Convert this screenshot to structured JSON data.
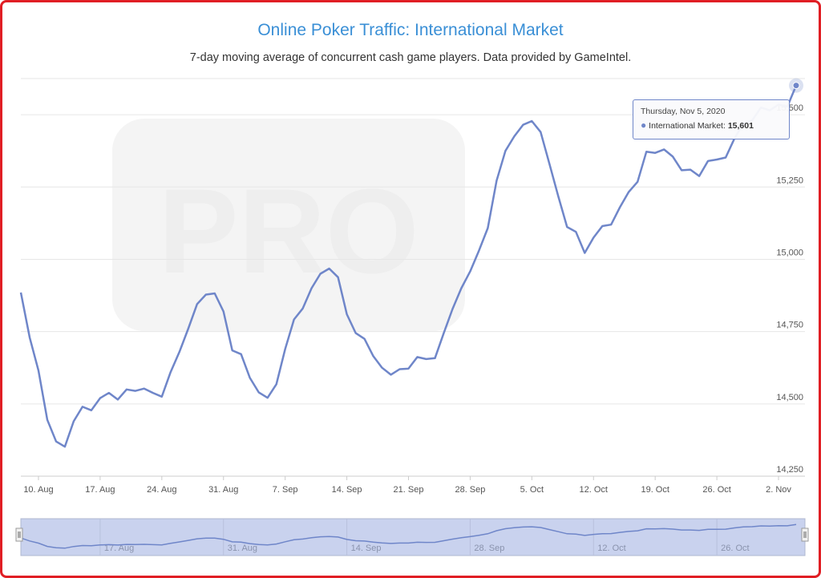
{
  "header": {
    "title": "Online Poker Traffic: International Market",
    "subtitle": "7-day moving average of concurrent cash game players. Data provided by GameIntel."
  },
  "watermark": {
    "text": "PRO"
  },
  "tooltip": {
    "date": "Thursday, Nov 5, 2020",
    "series_label": "International Market:",
    "value": "15,601"
  },
  "colors": {
    "line": "#6f86c9",
    "title": "#3a8fd6",
    "frame": "#e01e24",
    "navigator_fill": "#c9d2ee"
  },
  "chart_data": {
    "type": "line",
    "title": "Online Poker Traffic: International Market",
    "subtitle": "7-day moving average of concurrent cash game players. Data provided by GameIntel.",
    "x_start": "2020-08-08",
    "x_end": "2020-11-05",
    "xlabel": "",
    "ylabel": "",
    "ylim": [
      14250,
      15625
    ],
    "yticks": [
      14250,
      14500,
      14750,
      15000,
      15250,
      15500
    ],
    "ytick_labels": [
      "14,250",
      "14,500",
      "14,750",
      "15,000",
      "15,250",
      "15,500"
    ],
    "xticks": [
      {
        "date": "2020-08-10",
        "label": "10. Aug"
      },
      {
        "date": "2020-08-17",
        "label": "17. Aug"
      },
      {
        "date": "2020-08-24",
        "label": "24. Aug"
      },
      {
        "date": "2020-08-31",
        "label": "31. Aug"
      },
      {
        "date": "2020-09-07",
        "label": "7. Sep"
      },
      {
        "date": "2020-09-14",
        "label": "14. Sep"
      },
      {
        "date": "2020-09-21",
        "label": "21. Sep"
      },
      {
        "date": "2020-09-28",
        "label": "28. Sep"
      },
      {
        "date": "2020-10-05",
        "label": "5. Oct"
      },
      {
        "date": "2020-10-12",
        "label": "12. Oct"
      },
      {
        "date": "2020-10-19",
        "label": "19. Oct"
      },
      {
        "date": "2020-10-26",
        "label": "26. Oct"
      },
      {
        "date": "2020-11-02",
        "label": "2. Nov"
      }
    ],
    "navigator_labels": [
      {
        "date": "2020-08-17",
        "label": "17. Aug"
      },
      {
        "date": "2020-08-31",
        "label": "31. Aug"
      },
      {
        "date": "2020-09-14",
        "label": "14. Sep"
      },
      {
        "date": "2020-09-28",
        "label": "28. Sep"
      },
      {
        "date": "2020-10-12",
        "label": "12. Oct"
      },
      {
        "date": "2020-10-26",
        "label": "26. Oct"
      }
    ],
    "grid": true,
    "legend": "none",
    "series": [
      {
        "values": [
          14885,
          14730,
          14615,
          14445,
          14370,
          14352,
          14440,
          14490,
          14478,
          14520,
          14538,
          14515,
          14550,
          14545,
          14553,
          14538,
          14525,
          14610,
          14680,
          14760,
          14845,
          14878,
          14882,
          14820,
          14685,
          14672,
          14590,
          14540,
          14521,
          14568,
          14690,
          14792,
          14830,
          14900,
          14950,
          14968,
          14938,
          14810,
          14745,
          14725,
          14665,
          14625,
          14601,
          14620,
          14622,
          14662,
          14655,
          14658,
          14745,
          14828,
          14900,
          14958,
          15030,
          15108,
          15272,
          15375,
          15425,
          15465,
          15478,
          15440,
          15330,
          15218,
          15112,
          15095,
          15022,
          15075,
          15115,
          15120,
          15180,
          15233,
          15268,
          15372,
          15368,
          15380,
          15355,
          15308,
          15310,
          15288,
          15340,
          15345,
          15352,
          15418,
          15470,
          15480,
          15525,
          15515,
          15535,
          15528,
          15601
        ]
      }
    ]
  }
}
